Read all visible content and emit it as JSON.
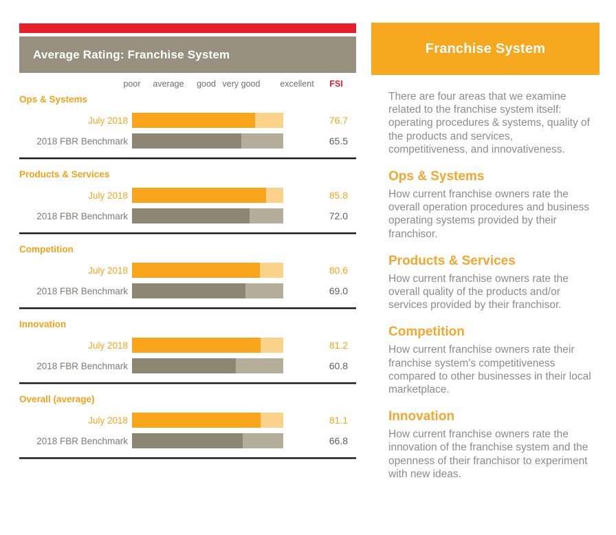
{
  "colors": {
    "accent_red": "#E71F2D",
    "panel_orange": "#F6A81F",
    "bar_orange": "#F9A51B",
    "bar_orange_light": "#FBD289",
    "bar_gray": "#8D8672",
    "bar_gray_light": "#B4AD9A",
    "header_taupe": "#97907E",
    "heading_orange": "#F5A21B",
    "body_gray": "#8b8b8b"
  },
  "chart_data": {
    "type": "bar",
    "title": "Average Rating: Franchise System",
    "orientation": "horizontal",
    "categories": [
      "Ops & Systems",
      "Products & Services",
      "Competition",
      "Innovation",
      "Overall (average)"
    ],
    "series": [
      {
        "name": "July 2018",
        "values": [
          76.7,
          85.8,
          80.6,
          81.2,
          81.1
        ],
        "labels": [
          "76.7",
          "85.8",
          "80.6",
          "81.2",
          "81.1"
        ],
        "color": "#F9A51B"
      },
      {
        "name": "2018 FBR Benchmark",
        "values": [
          65.5,
          72.0,
          69.0,
          60.8,
          66.8
        ],
        "labels": [
          "65.5",
          "72.0",
          "69.0",
          "60.8",
          "66.8"
        ],
        "color": "#8D8672"
      }
    ],
    "x_axis_labels": [
      "poor",
      "average",
      "good",
      "very good",
      "excellent"
    ],
    "value_column_label": "FSI",
    "xlim": [
      0,
      100
    ],
    "grid": false,
    "legend_position": "row-labels-left"
  },
  "right_panel": {
    "title": "Franchise System",
    "intro": "There are four areas that we examine related to the franchise system itself: operating procedures & systems, quality of the products and services, competitiveness, and innovativeness.",
    "sections": [
      {
        "heading": "Ops & Systems",
        "body": "How current franchise owners rate the overall operation procedures and business operating systems provided by their franchisor."
      },
      {
        "heading": "Products & Services",
        "body": "How current franchise owners rate the overall quality of the products and/or services provided by their franchisor."
      },
      {
        "heading": "Competition",
        "body": "How current franchise owners rate their franchise system's competitiveness compared to other businesses in their local marketplace."
      },
      {
        "heading": "Innovation",
        "body": "How current franchise owners rate the innovation of the franchise system and the openness of their franchisor to experiment with new ideas."
      }
    ]
  }
}
